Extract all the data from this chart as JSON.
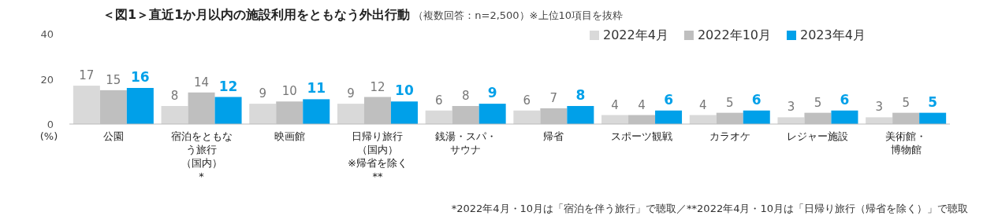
{
  "chart_data": {
    "type": "bar",
    "title": "＜図1＞直近1か月以内の施設利用をともなう外出行動",
    "subtitle": "（複数回答：n=2,500）※上位10項目を抜粋",
    "ylabel": "(%)",
    "categories": [
      "公園",
      "宿泊をともなう旅行（国内）*",
      "映画館",
      "日帰り旅行（国内）※帰省を除く**",
      "銭湯・スパ・サウナ",
      "帰省",
      "スポーツ観戦",
      "カラオケ",
      "レジャー施設",
      "美術館・博物館"
    ],
    "series": [
      {
        "name": "2022年4月",
        "color": "#d9d9d9",
        "values": [
          17,
          8,
          9,
          9,
          6,
          6,
          4,
          4,
          3,
          3
        ]
      },
      {
        "name": "2022年10月",
        "color": "#bfbfbf",
        "values": [
          15,
          14,
          10,
          12,
          8,
          7,
          4,
          5,
          5,
          5
        ]
      },
      {
        "name": "2023年4月",
        "color": "#00a0e9",
        "values": [
          16,
          12,
          11,
          10,
          9,
          8,
          6,
          6,
          6,
          5
        ]
      }
    ],
    "ylim": [
      0,
      40
    ],
    "yticks": [
      0,
      20,
      40
    ],
    "data_labels": true,
    "legend": "top right",
    "grid": false,
    "annotations": [
      "*2022年4月・10月は「宿泊を伴う旅行」で聴取／**2022年4月・10月は「日帰り旅行（帰省を除く）」で聴取"
    ]
  }
}
